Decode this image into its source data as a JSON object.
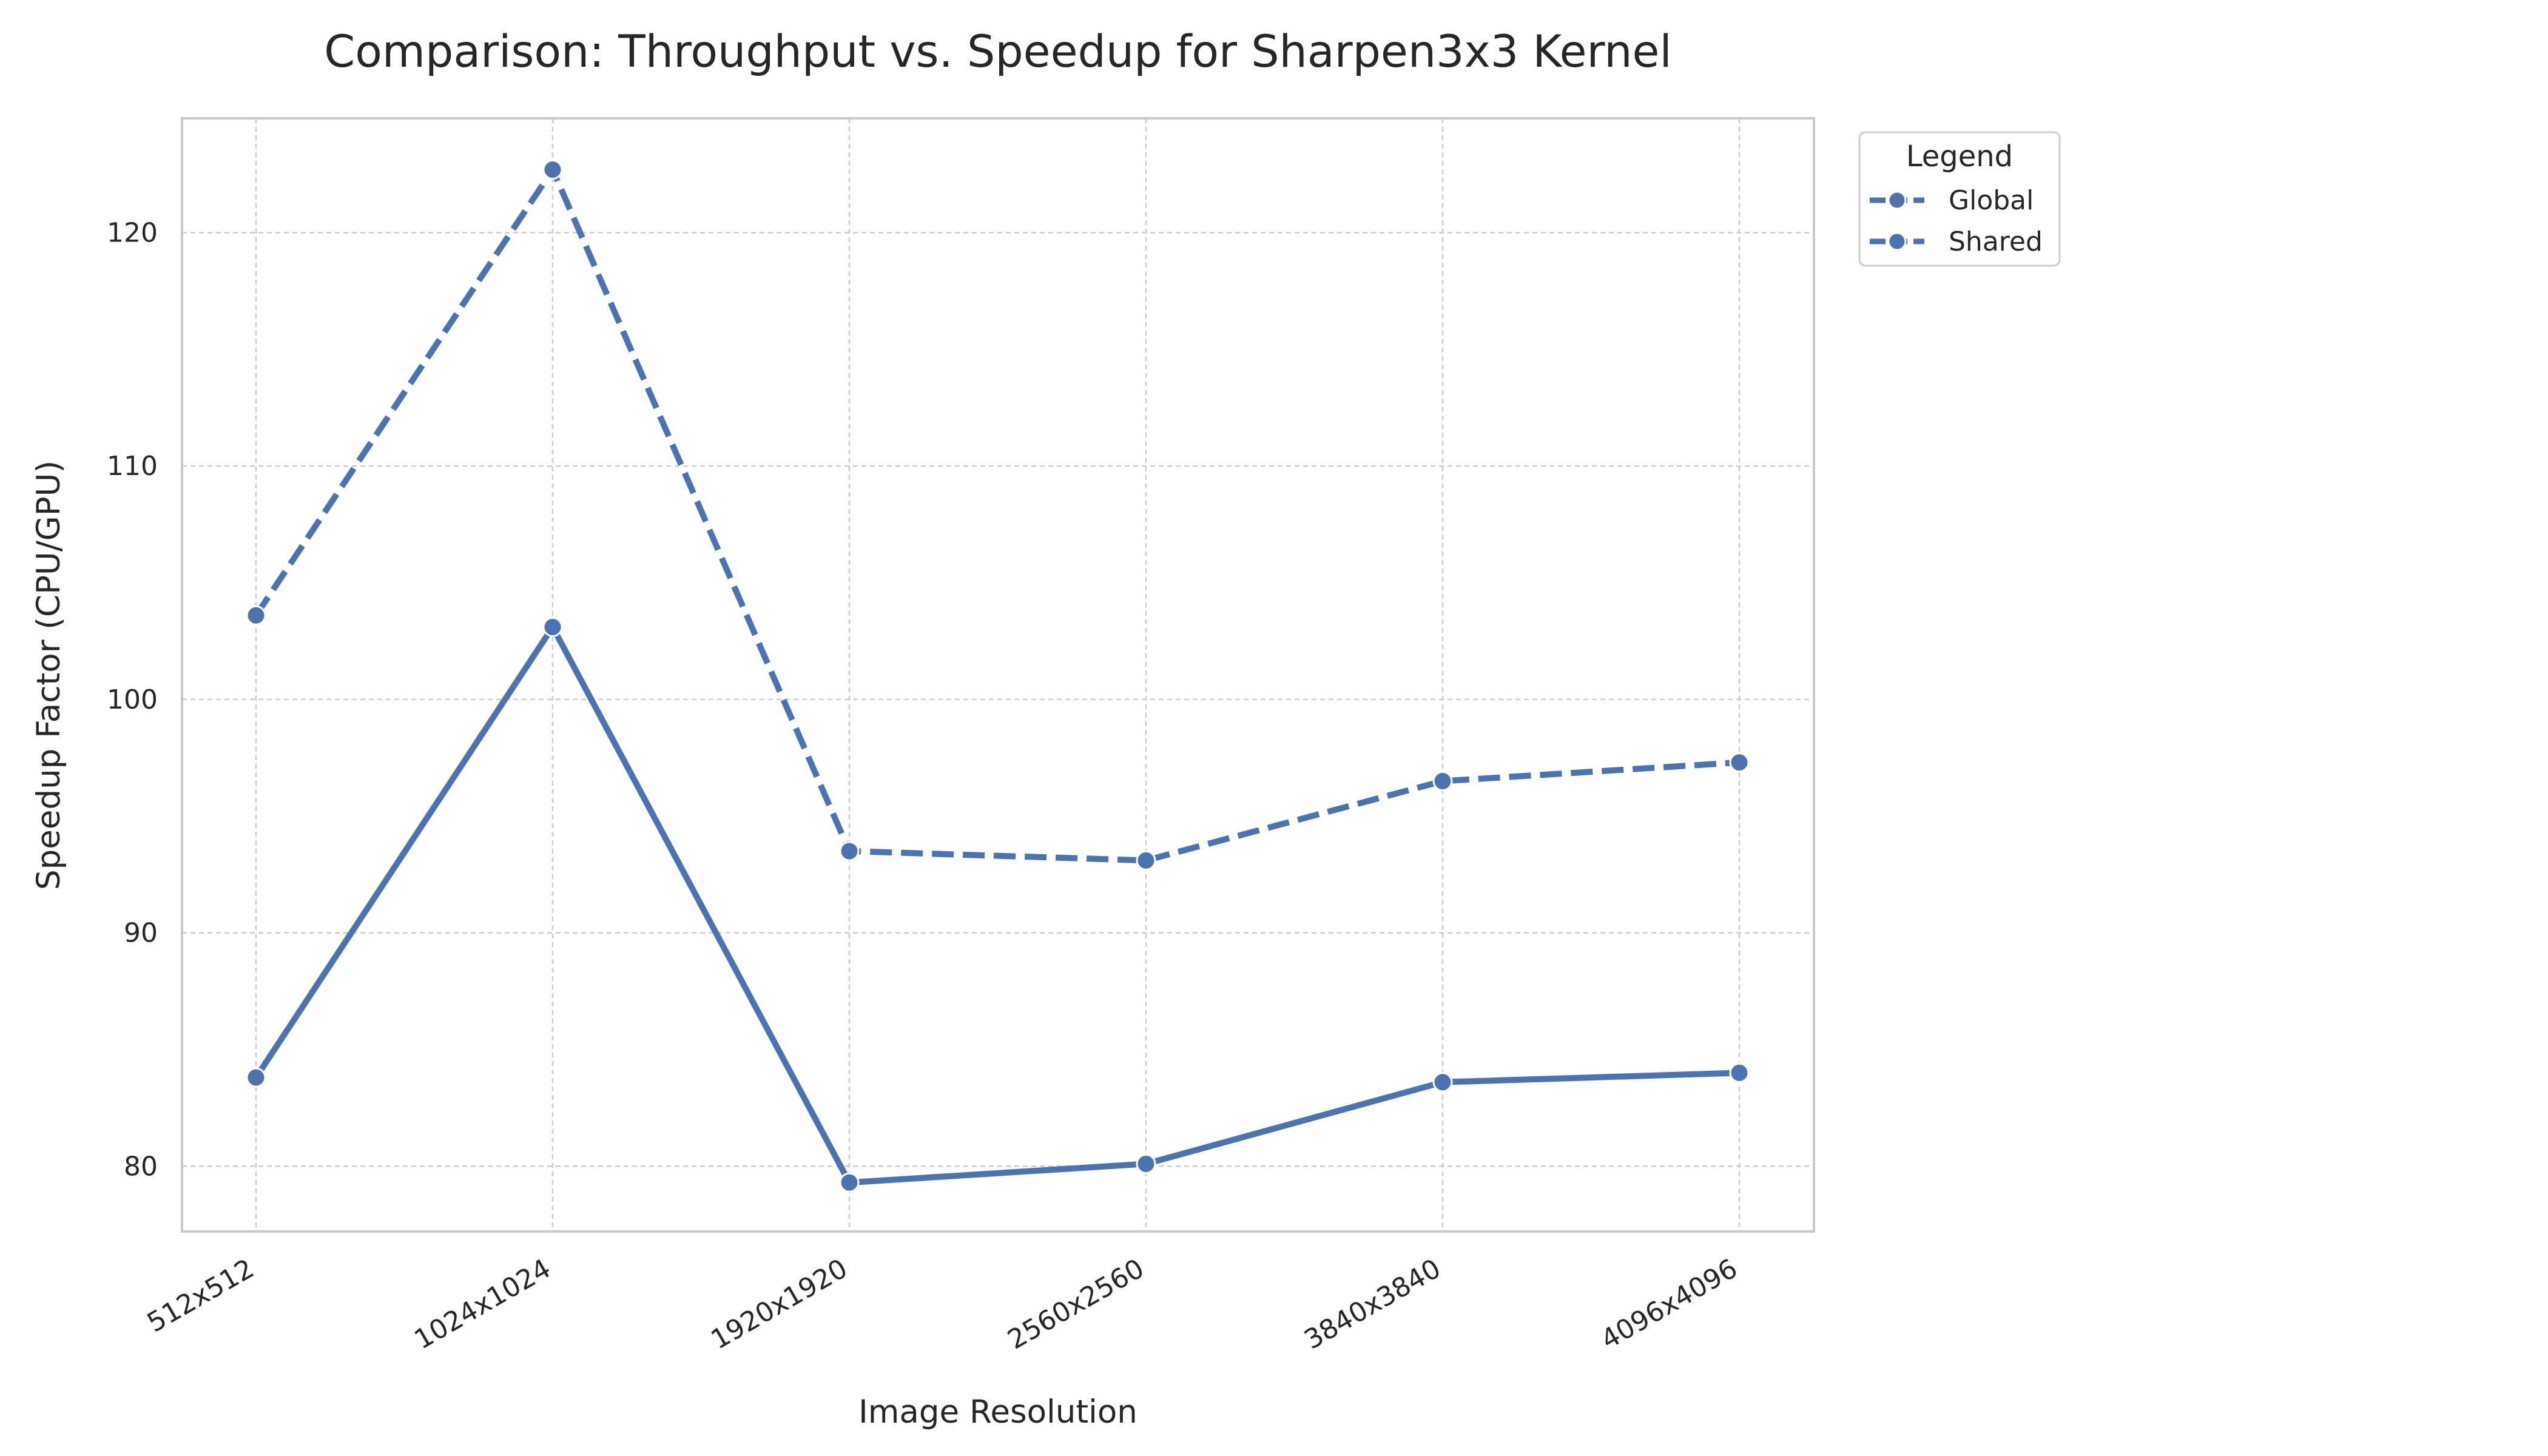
{
  "chart_data": {
    "type": "line",
    "title": "Comparison: Throughput vs. Speedup for Sharpen3x3 Kernel",
    "xlabel": "Image Resolution",
    "ylabel": "Speedup Factor (CPU/GPU)",
    "categories": [
      "512x512",
      "1024x1024",
      "1920x1920",
      "2560x2560",
      "3840x3840",
      "4096x4096"
    ],
    "ylim": [
      77.2,
      124.9
    ],
    "yticks": [
      80,
      90,
      100,
      110,
      120
    ],
    "ytick_labels": [
      "80",
      "90",
      "100",
      "110",
      "120"
    ],
    "grid": true,
    "legend": {
      "title": "Legend",
      "placement": "outside-top-right"
    },
    "series": [
      {
        "name": "Global",
        "style": "solid",
        "color": "#4c72b0",
        "values": [
          83.8,
          103.1,
          79.3,
          80.1,
          83.6,
          84.0
        ]
      },
      {
        "name": "Shared",
        "style": "dashed",
        "color": "#4c72b0",
        "values": [
          103.6,
          122.7,
          93.5,
          93.1,
          96.5,
          97.3
        ]
      }
    ]
  }
}
